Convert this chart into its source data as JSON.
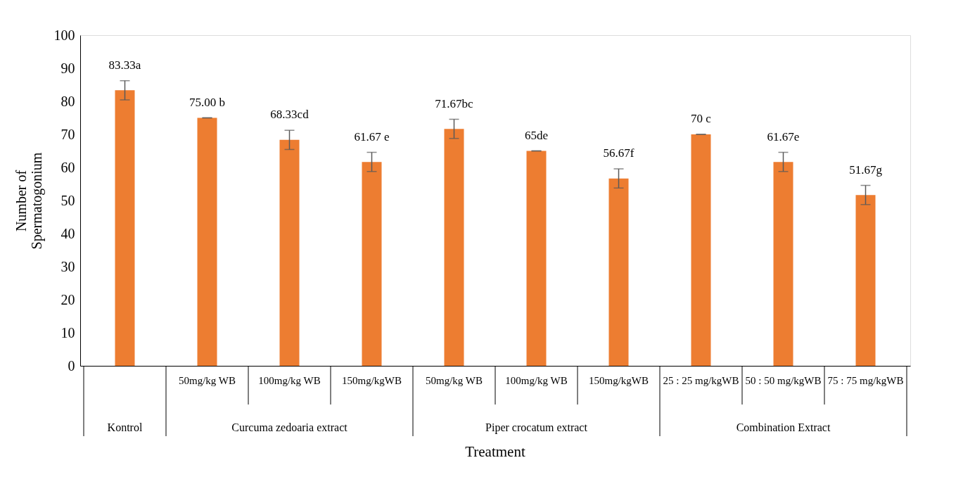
{
  "chart_data": {
    "type": "bar",
    "ylabel": "Number of Spermatogonium",
    "xlabel": "Treatment",
    "categories": [
      null,
      "50mg/kg WB",
      "100mg/kg WB",
      "150mg/kgWB",
      "50mg/kg WB",
      "100mg/kg WB",
      "150mg/kgWB",
      "25 : 25 mg/kgWB",
      "50 : 50 mg/kgWB",
      "75 : 75 mg/kgWB"
    ],
    "values": [
      83.33,
      75.0,
      68.33,
      61.67,
      71.67,
      65,
      56.67,
      70,
      61.67,
      51.67
    ],
    "errors": [
      2.9,
      0,
      2.9,
      2.9,
      2.9,
      0,
      2.9,
      0,
      2.9,
      2.9
    ],
    "value_labels": [
      "83.33a",
      "75.00 b",
      "68.33cd",
      "61.67 e",
      "71.67bc",
      "65de",
      "56.67f",
      "70 c",
      "61.67e",
      "51.67g"
    ],
    "color": "#ed7d31",
    "annotations": [
      "Kontrol",
      "Curcuma zedoaria extract",
      "Piper crocatum extract",
      "Combination Extract"
    ],
    "ylim": [
      0,
      100
    ],
    "yticks": [
      0,
      10,
      20,
      30,
      40,
      50,
      60,
      70,
      80,
      90,
      100
    ],
    "grid": false
  }
}
